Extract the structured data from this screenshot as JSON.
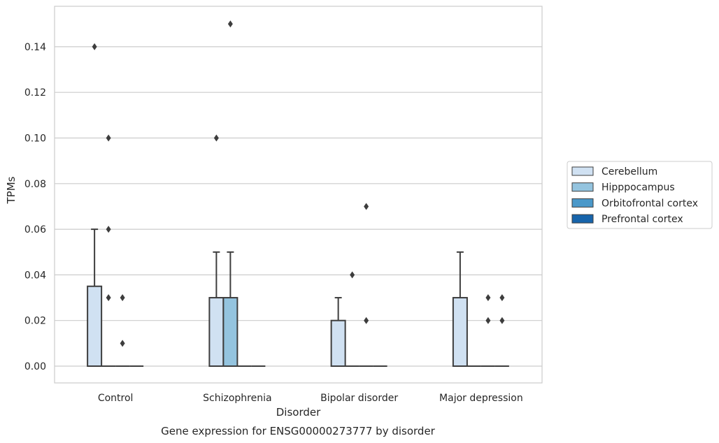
{
  "caption": "Gene expression for ENSG00000273777 by disorder",
  "chart_data": {
    "type": "box",
    "xlabel": "Disorder",
    "ylabel": "TPMs",
    "ylim": [
      -0.0075,
      0.157
    ],
    "yticks": [
      "0.00",
      "0.02",
      "0.04",
      "0.06",
      "0.08",
      "0.10",
      "0.12",
      "0.14"
    ],
    "categories": [
      "Control",
      "Schizophrenia",
      "Bipolar disorder",
      "Major depression"
    ],
    "grid": "horizontal",
    "legend_position": "right",
    "series": [
      {
        "name": "Cerebellum",
        "color": "#d0e1f2"
      },
      {
        "name": "Hipppocampus",
        "color": "#94c4df"
      },
      {
        "name": "Orbitofrontal cortex",
        "color": "#4a98c9"
      },
      {
        "name": "Prefrontal cortex",
        "color": "#1764ab"
      }
    ],
    "boxes": [
      {
        "category": 0,
        "series": 0,
        "q1": 0,
        "median": 0,
        "q3": 0.035,
        "whislo": 0,
        "whishi": 0.06,
        "outliers": [
          0.14
        ]
      },
      {
        "category": 0,
        "series": 1,
        "q1": 0,
        "median": 0,
        "q3": 0,
        "whislo": 0,
        "whishi": 0,
        "outliers": [
          0.1,
          0.06,
          0.03
        ]
      },
      {
        "category": 0,
        "series": 2,
        "q1": 0,
        "median": 0,
        "q3": 0,
        "whislo": 0,
        "whishi": 0,
        "outliers": [
          0.03,
          0.01
        ]
      },
      {
        "category": 0,
        "series": 3,
        "q1": 0,
        "median": 0,
        "q3": 0,
        "whislo": 0,
        "whishi": 0,
        "outliers": []
      },
      {
        "category": 1,
        "series": 0,
        "q1": 0,
        "median": 0,
        "q3": 0.03,
        "whislo": 0,
        "whishi": 0.05,
        "outliers": [
          0.1
        ]
      },
      {
        "category": 1,
        "series": 1,
        "q1": 0,
        "median": 0,
        "q3": 0.03,
        "whislo": 0,
        "whishi": 0.05,
        "outliers": [
          0.15
        ]
      },
      {
        "category": 1,
        "series": 2,
        "q1": 0,
        "median": 0,
        "q3": 0,
        "whislo": 0,
        "whishi": 0,
        "outliers": []
      },
      {
        "category": 1,
        "series": 3,
        "q1": 0,
        "median": 0,
        "q3": 0,
        "whislo": 0,
        "whishi": 0,
        "outliers": []
      },
      {
        "category": 2,
        "series": 0,
        "q1": 0,
        "median": 0,
        "q3": 0.02,
        "whislo": 0,
        "whishi": 0.03,
        "outliers": []
      },
      {
        "category": 2,
        "series": 1,
        "q1": 0,
        "median": 0,
        "q3": 0,
        "whislo": 0,
        "whishi": 0,
        "outliers": [
          0.04
        ]
      },
      {
        "category": 2,
        "series": 2,
        "q1": 0,
        "median": 0,
        "q3": 0,
        "whislo": 0,
        "whishi": 0,
        "outliers": [
          0.07,
          0.02
        ]
      },
      {
        "category": 2,
        "series": 3,
        "q1": 0,
        "median": 0,
        "q3": 0,
        "whislo": 0,
        "whishi": 0,
        "outliers": []
      },
      {
        "category": 3,
        "series": 0,
        "q1": 0,
        "median": 0,
        "q3": 0.03,
        "whislo": 0,
        "whishi": 0.05,
        "outliers": []
      },
      {
        "category": 3,
        "series": 1,
        "q1": 0,
        "median": 0,
        "q3": 0,
        "whislo": 0,
        "whishi": 0,
        "outliers": []
      },
      {
        "category": 3,
        "series": 2,
        "q1": 0,
        "median": 0,
        "q3": 0,
        "whislo": 0,
        "whishi": 0,
        "outliers": [
          0.03,
          0.02
        ]
      },
      {
        "category": 3,
        "series": 3,
        "q1": 0,
        "median": 0,
        "q3": 0,
        "whislo": 0,
        "whishi": 0,
        "outliers": [
          0.03,
          0.02
        ]
      }
    ]
  }
}
